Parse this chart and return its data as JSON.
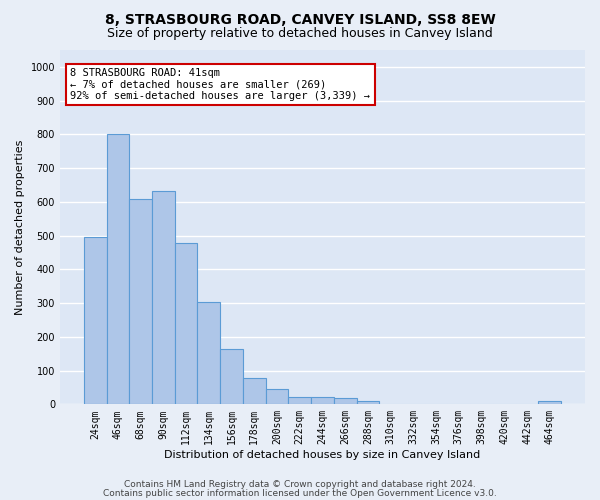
{
  "title": "8, STRASBOURG ROAD, CANVEY ISLAND, SS8 8EW",
  "subtitle": "Size of property relative to detached houses in Canvey Island",
  "xlabel": "Distribution of detached houses by size in Canvey Island",
  "ylabel": "Number of detached properties",
  "categories": [
    "24sqm",
    "46sqm",
    "68sqm",
    "90sqm",
    "112sqm",
    "134sqm",
    "156sqm",
    "178sqm",
    "200sqm",
    "222sqm",
    "244sqm",
    "266sqm",
    "288sqm",
    "310sqm",
    "332sqm",
    "354sqm",
    "376sqm",
    "398sqm",
    "420sqm",
    "442sqm",
    "464sqm"
  ],
  "values": [
    497,
    800,
    608,
    633,
    478,
    302,
    163,
    78,
    45,
    23,
    22,
    19,
    11,
    0,
    0,
    0,
    0,
    0,
    0,
    0,
    10
  ],
  "bar_color": "#aec6e8",
  "bar_edge_color": "#5b9bd5",
  "fig_background": "#e8eef7",
  "axes_background": "#dde7f5",
  "grid_color": "#ffffff",
  "annotation_text": "8 STRASBOURG ROAD: 41sqm\n← 7% of detached houses are smaller (269)\n92% of semi-detached houses are larger (3,339) →",
  "annotation_box_facecolor": "#ffffff",
  "annotation_box_edgecolor": "#cc0000",
  "ylim": [
    0,
    1050
  ],
  "yticks": [
    0,
    100,
    200,
    300,
    400,
    500,
    600,
    700,
    800,
    900,
    1000
  ],
  "footer1": "Contains HM Land Registry data © Crown copyright and database right 2024.",
  "footer2": "Contains public sector information licensed under the Open Government Licence v3.0.",
  "title_fontsize": 10,
  "subtitle_fontsize": 9,
  "axis_label_fontsize": 8,
  "tick_fontsize": 7,
  "annotation_fontsize": 7.5,
  "footer_fontsize": 6.5
}
